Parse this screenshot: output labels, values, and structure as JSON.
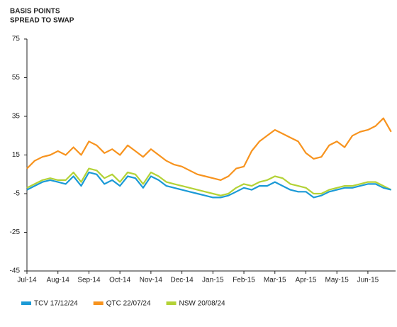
{
  "chart_data": {
    "type": "line",
    "title": "BASIS POINTS",
    "subtitle": "SPREAD TO SWAP",
    "categories": [
      "Jul-14",
      null,
      null,
      null,
      "Aug-14",
      null,
      null,
      null,
      "Sep-14",
      null,
      null,
      null,
      "Oct-14",
      null,
      null,
      null,
      "Nov-14",
      null,
      null,
      null,
      "Dec-14",
      null,
      null,
      null,
      "Jan-15",
      null,
      null,
      null,
      "Feb-15",
      null,
      null,
      null,
      "Mar-15",
      null,
      null,
      null,
      "Apr-15",
      null,
      null,
      null,
      "May-15",
      null,
      null,
      null,
      "Jun-15",
      null,
      null,
      null
    ],
    "series": [
      {
        "name": "TCV 17/12/24",
        "color": "#1b9ad6",
        "values": [
          -3,
          -1,
          1,
          2,
          1,
          0,
          4,
          -1,
          6,
          5,
          0,
          2,
          -1,
          4,
          3,
          -2,
          4,
          2,
          -1,
          -2,
          -3,
          -4,
          -5,
          -6,
          -7,
          -7,
          -6,
          -4,
          -2,
          -3,
          -1,
          -1,
          1,
          -1,
          -3,
          -4,
          -4,
          -7,
          -6,
          -4,
          -3,
          -2,
          -2,
          -1,
          0,
          0,
          -2,
          -3
        ]
      },
      {
        "name": "QTC 22/07/24",
        "color": "#f7931e",
        "values": [
          8,
          12,
          14,
          15,
          17,
          15,
          19,
          15,
          22,
          20,
          16,
          18,
          15,
          20,
          17,
          14,
          18,
          15,
          12,
          10,
          9,
          7,
          5,
          4,
          3,
          2,
          4,
          8,
          9,
          17,
          22,
          25,
          28,
          26,
          24,
          22,
          16,
          13,
          14,
          20,
          22,
          19,
          25,
          27,
          28,
          30,
          34,
          27
        ]
      },
      {
        "name": "NSW 20/08/24",
        "color": "#b3d236",
        "values": [
          -2,
          0,
          2,
          3,
          2,
          2,
          6,
          1,
          8,
          7,
          3,
          5,
          1,
          6,
          5,
          0,
          6,
          4,
          1,
          0,
          -1,
          -2,
          -3,
          -4,
          -5,
          -6,
          -5,
          -2,
          0,
          -1,
          1,
          2,
          4,
          3,
          0,
          -1,
          -2,
          -5,
          -5,
          -3,
          -2,
          -1,
          -1,
          0,
          1,
          1,
          -1,
          -3
        ]
      }
    ],
    "ylim": [
      -45,
      75
    ],
    "yticks": [
      -45,
      -25,
      -5,
      15,
      35,
      55,
      75
    ]
  }
}
